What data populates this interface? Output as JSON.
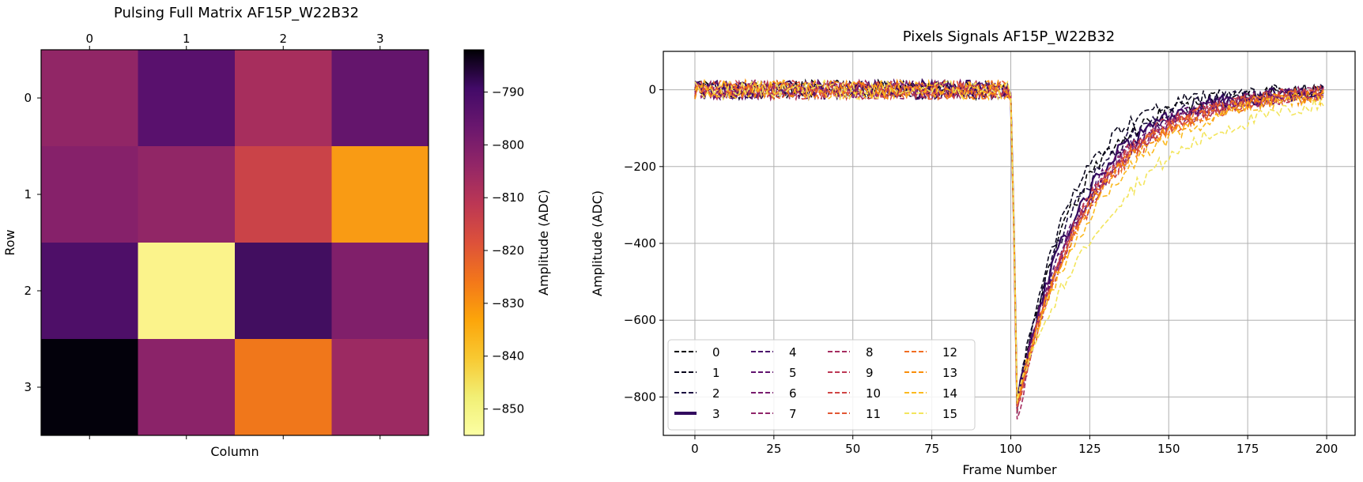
{
  "chart_data": [
    {
      "type": "heatmap",
      "title": "Pulsing Full Matrix AF15P_W22B32",
      "xlabel": "Column",
      "ylabel": "Row",
      "x_ticks": [
        "0",
        "1",
        "2",
        "3"
      ],
      "y_ticks": [
        "0",
        "1",
        "2",
        "3"
      ],
      "values": [
        [
          -811,
          -801,
          -815,
          -803
        ],
        [
          -809,
          -811,
          -822,
          -839
        ],
        [
          -799,
          -853,
          -797,
          -808
        ],
        [
          -783,
          -810,
          -833,
          -813
        ]
      ],
      "colorbar": {
        "label": "Amplitude (ADC)",
        "range": [
          -855,
          -782
        ],
        "ticks": [
          -790,
          -800,
          -810,
          -820,
          -830,
          -840,
          -850
        ],
        "colormap": "inferno"
      }
    },
    {
      "type": "line",
      "title": "Pixels Signals AF15P_W22B32",
      "xlabel": "Frame Number",
      "ylabel": "Amplitude (ADC)",
      "xlim": [
        -10,
        209
      ],
      "ylim": [
        -900,
        100
      ],
      "x_ticks": [
        0,
        25,
        50,
        75,
        100,
        125,
        150,
        175,
        200
      ],
      "y_ticks": [
        0,
        -200,
        -400,
        -600,
        -800
      ],
      "grid": true,
      "legend_position": "lower-left",
      "legend_columns": 4,
      "series": [
        {
          "name": "0",
          "color": "#000004",
          "style": "dashed",
          "min": -815,
          "tau": 18
        },
        {
          "name": "1",
          "color": "#07051b",
          "style": "dashed",
          "min": -825,
          "tau": 16
        },
        {
          "name": "2",
          "color": "#1b0c41",
          "style": "dashed",
          "min": -808,
          "tau": 19
        },
        {
          "name": "3",
          "color": "#320a5e",
          "style": "solid-bold",
          "min": -812,
          "tau": 20
        },
        {
          "name": "4",
          "color": "#4a0c6b",
          "style": "dashed",
          "min": -820,
          "tau": 21
        },
        {
          "name": "5",
          "color": "#61136e",
          "style": "dashed",
          "min": -818,
          "tau": 21
        },
        {
          "name": "6",
          "color": "#781c6d",
          "style": "dashed",
          "min": -830,
          "tau": 22
        },
        {
          "name": "7",
          "color": "#8f2469",
          "style": "dashed",
          "min": -822,
          "tau": 22
        },
        {
          "name": "8",
          "color": "#a52c60",
          "style": "dashed",
          "min": -855,
          "tau": 22
        },
        {
          "name": "9",
          "color": "#bc3754",
          "style": "dashed",
          "min": -840,
          "tau": 21
        },
        {
          "name": "10",
          "color": "#d04545",
          "style": "dashed",
          "min": -826,
          "tau": 22
        },
        {
          "name": "11",
          "color": "#e25734",
          "style": "dashed",
          "min": -832,
          "tau": 23
        },
        {
          "name": "12",
          "color": "#f06e22",
          "style": "dashed",
          "min": -816,
          "tau": 23
        },
        {
          "name": "13",
          "color": "#f98e09",
          "style": "dashed",
          "min": -812,
          "tau": 24
        },
        {
          "name": "14",
          "color": "#fbb91f",
          "style": "dashed",
          "min": -808,
          "tau": 26
        },
        {
          "name": "15",
          "color": "#f3e55d",
          "style": "dashed",
          "min": -800,
          "tau": 32
        }
      ]
    }
  ]
}
